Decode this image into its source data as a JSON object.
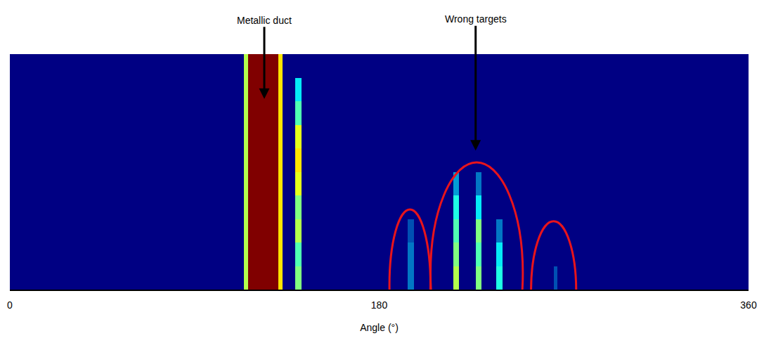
{
  "chart_data": {
    "type": "heatmap",
    "x_label": "Angle (°)",
    "x": [
      0,
      114,
      116,
      131,
      133,
      139,
      142,
      194,
      197,
      216,
      219,
      227,
      230,
      237,
      240,
      265,
      267,
      360
    ],
    "y": [
      0,
      1,
      2,
      3,
      4,
      5,
      6,
      7,
      8,
      9,
      10
    ],
    "z": [
      [
        0,
        0.55,
        1,
        0.65,
        0,
        0.5,
        0,
        0.2,
        0,
        0.55,
        0,
        0.5,
        0,
        0.4,
        0,
        0.15,
        0
      ],
      [
        0,
        0.55,
        1,
        0.65,
        0,
        0.45,
        0,
        0.2,
        0,
        0.5,
        0,
        0.45,
        0,
        0.35,
        0,
        0,
        0
      ],
      [
        0,
        0.55,
        1,
        0.65,
        0,
        0.55,
        0,
        0.15,
        0,
        0.45,
        0,
        0.5,
        0,
        0.2,
        0,
        0,
        0
      ],
      [
        0,
        0.55,
        1,
        0.65,
        0,
        0.5,
        0,
        0,
        0,
        0.4,
        0,
        0.35,
        0,
        0,
        0,
        0,
        0
      ],
      [
        0,
        0.55,
        1,
        0.65,
        0,
        0.6,
        0,
        0,
        0,
        0.25,
        0,
        0.2,
        0,
        0,
        0,
        0,
        0
      ],
      [
        0,
        0.55,
        1,
        0.65,
        0,
        0.65,
        0,
        0,
        0,
        0,
        0,
        0,
        0,
        0,
        0,
        0,
        0
      ],
      [
        0,
        0.55,
        1,
        0.65,
        0,
        0.6,
        0,
        0,
        0,
        0,
        0,
        0,
        0,
        0,
        0,
        0,
        0
      ],
      [
        0,
        0.55,
        1,
        0.65,
        0,
        0.45,
        0,
        0,
        0,
        0,
        0,
        0,
        0,
        0,
        0,
        0,
        0
      ],
      [
        0,
        0.55,
        1,
        0.65,
        0,
        0.35,
        0,
        0,
        0,
        0,
        0,
        0,
        0,
        0,
        0,
        0,
        0
      ],
      [
        0,
        0.55,
        1,
        0.65,
        0,
        0,
        0,
        0,
        0,
        0,
        0,
        0,
        0,
        0,
        0,
        0,
        0
      ]
    ],
    "zlim": [
      0,
      1
    ],
    "xlim": [
      0,
      360
    ],
    "xticks": [
      0,
      180,
      360
    ],
    "ylim": [
      0,
      10
    ],
    "grid": false,
    "tick_labels": "x",
    "annotations": [
      {
        "text": "Metallic duct"
      },
      {
        "text": "Wrong targets"
      }
    ]
  }
}
